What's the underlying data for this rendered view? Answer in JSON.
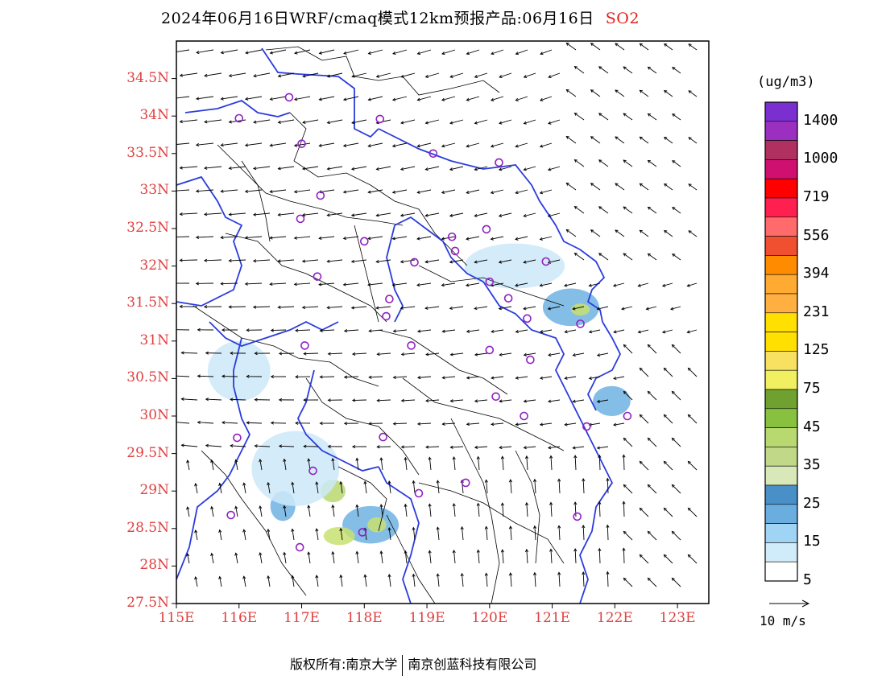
{
  "title": {
    "main": "2024年06月16日WRF/cmaq模式12km预报产品:06月16日",
    "pollutant": "SO2"
  },
  "axes": {
    "lat_labels": [
      "34.5N",
      "34N",
      "33.5N",
      "33N",
      "32.5N",
      "32N",
      "31.5N",
      "31N",
      "30.5N",
      "30N",
      "29.5N",
      "29N",
      "28.5N",
      "28N",
      "27.5N"
    ],
    "lat_values": [
      34.5,
      34,
      33.5,
      33,
      32.5,
      32,
      31.5,
      31,
      30.5,
      30,
      29.5,
      29,
      28.5,
      28,
      27.5
    ],
    "lon_labels": [
      "115E",
      "116E",
      "117E",
      "118E",
      "119E",
      "120E",
      "121E",
      "122E",
      "123E"
    ],
    "lon_values": [
      115,
      116,
      117,
      118,
      119,
      120,
      121,
      122,
      123
    ],
    "lon_range": [
      115,
      123.5
    ],
    "lat_range": [
      27.5,
      35
    ]
  },
  "legend": {
    "unit": "(ug/m3)",
    "labels": [
      "1400",
      "1000",
      "719",
      "556",
      "394",
      "231",
      "125",
      "75",
      "45",
      "35",
      "25",
      "15",
      "5"
    ],
    "colors": [
      "#7b2fd0",
      "#9b30c0",
      "#b03060",
      "#d01070",
      "#ff0000",
      "#ff2050",
      "#ff6a6a",
      "#f05030",
      "#ff8c00",
      "#ffaa30",
      "#ffb040",
      "#ffe000",
      "#ffe000",
      "#f8e060",
      "#f0f060",
      "#70a030",
      "#88c040",
      "#b8d870",
      "#c0d888",
      "#d8e8b8",
      "#4a90c8",
      "#6aaee0",
      "#a0d4f4",
      "#d0ecfa",
      "#ffffff"
    ]
  },
  "wind_reference": {
    "label": "10 m/s"
  },
  "cities": [
    [
      116.8,
      34.25
    ],
    [
      116.0,
      33.97
    ],
    [
      117.0,
      33.63
    ],
    [
      118.25,
      33.96
    ],
    [
      119.1,
      33.5
    ],
    [
      120.15,
      33.38
    ],
    [
      117.3,
      32.94
    ],
    [
      116.98,
      32.63
    ],
    [
      118.0,
      32.33
    ],
    [
      117.25,
      31.86
    ],
    [
      118.8,
      32.05
    ],
    [
      119.4,
      32.39
    ],
    [
      119.45,
      32.2
    ],
    [
      119.95,
      32.49
    ],
    [
      120.9,
      32.06
    ],
    [
      120.0,
      31.79
    ],
    [
      120.3,
      31.57
    ],
    [
      120.6,
      31.3
    ],
    [
      121.45,
      31.23
    ],
    [
      118.4,
      31.56
    ],
    [
      118.35,
      31.33
    ],
    [
      117.05,
      30.94
    ],
    [
      118.75,
      30.94
    ],
    [
      120.0,
      30.88
    ],
    [
      120.65,
      30.75
    ],
    [
      120.1,
      30.26
    ],
    [
      120.55,
      30.0
    ],
    [
      121.55,
      29.86
    ],
    [
      122.2,
      30.0
    ],
    [
      115.97,
      29.71
    ],
    [
      118.3,
      29.72
    ],
    [
      117.18,
      29.27
    ],
    [
      118.87,
      28.97
    ],
    [
      119.62,
      29.11
    ],
    [
      115.87,
      28.68
    ],
    [
      121.4,
      28.66
    ],
    [
      117.97,
      28.45
    ],
    [
      116.97,
      28.25
    ]
  ],
  "pollution_patches": [
    {
      "lon": 121.3,
      "lat": 31.45,
      "rx": 0.45,
      "ry": 0.25,
      "level": "15"
    },
    {
      "lon": 121.45,
      "lat": 31.42,
      "rx": 0.15,
      "ry": 0.08,
      "level": "45"
    },
    {
      "lon": 120.4,
      "lat": 32.0,
      "rx": 0.8,
      "ry": 0.3,
      "level": "5"
    },
    {
      "lon": 118.1,
      "lat": 28.55,
      "rx": 0.45,
      "ry": 0.25,
      "level": "15"
    },
    {
      "lon": 118.2,
      "lat": 28.55,
      "rx": 0.15,
      "ry": 0.1,
      "level": "45"
    },
    {
      "lon": 117.6,
      "lat": 28.4,
      "rx": 0.25,
      "ry": 0.12,
      "level": "45"
    },
    {
      "lon": 117.5,
      "lat": 29.0,
      "rx": 0.2,
      "ry": 0.15,
      "level": "35"
    },
    {
      "lon": 116.7,
      "lat": 28.8,
      "rx": 0.2,
      "ry": 0.2,
      "level": "15"
    },
    {
      "lon": 121.95,
      "lat": 30.2,
      "rx": 0.3,
      "ry": 0.2,
      "level": "15"
    },
    {
      "lon": 116.9,
      "lat": 29.3,
      "rx": 0.7,
      "ry": 0.5,
      "level": "5"
    },
    {
      "lon": 116.0,
      "lat": 30.6,
      "rx": 0.5,
      "ry": 0.4,
      "level": "5"
    }
  ]
}
